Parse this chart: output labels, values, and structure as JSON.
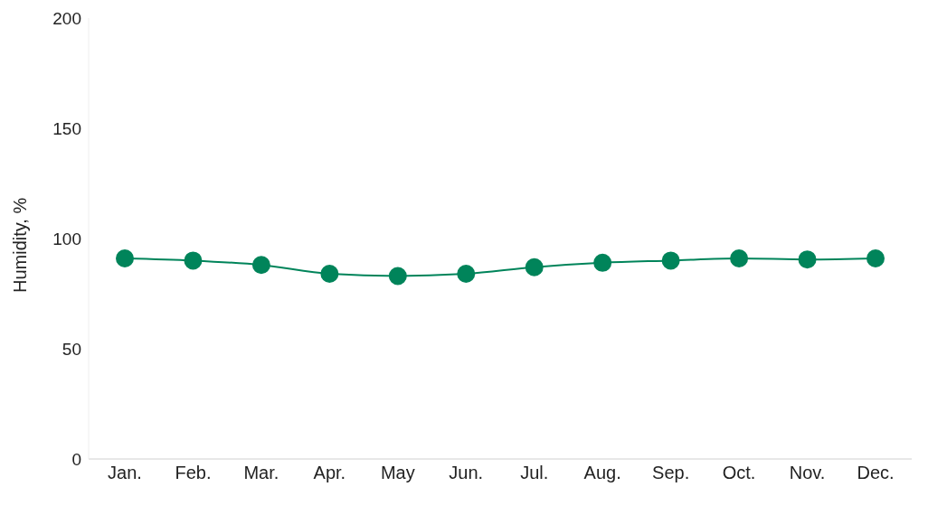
{
  "chart_data": {
    "type": "line",
    "ylabel": "Humidity, %",
    "categories": [
      "Jan.",
      "Feb.",
      "Mar.",
      "Apr.",
      "May",
      "Jun.",
      "Jul.",
      "Aug.",
      "Sep.",
      "Oct.",
      "Nov.",
      "Dec."
    ],
    "series": [
      {
        "color": "#00845a",
        "values": [
          91,
          90,
          88,
          84,
          83,
          84,
          87,
          89,
          90,
          91,
          90.5,
          91
        ]
      }
    ],
    "ylim": [
      0,
      200
    ],
    "yticks": [
      0,
      50,
      100,
      150,
      200
    ],
    "grid": false,
    "legend": false,
    "marker": "circle",
    "line_style": "solid"
  }
}
